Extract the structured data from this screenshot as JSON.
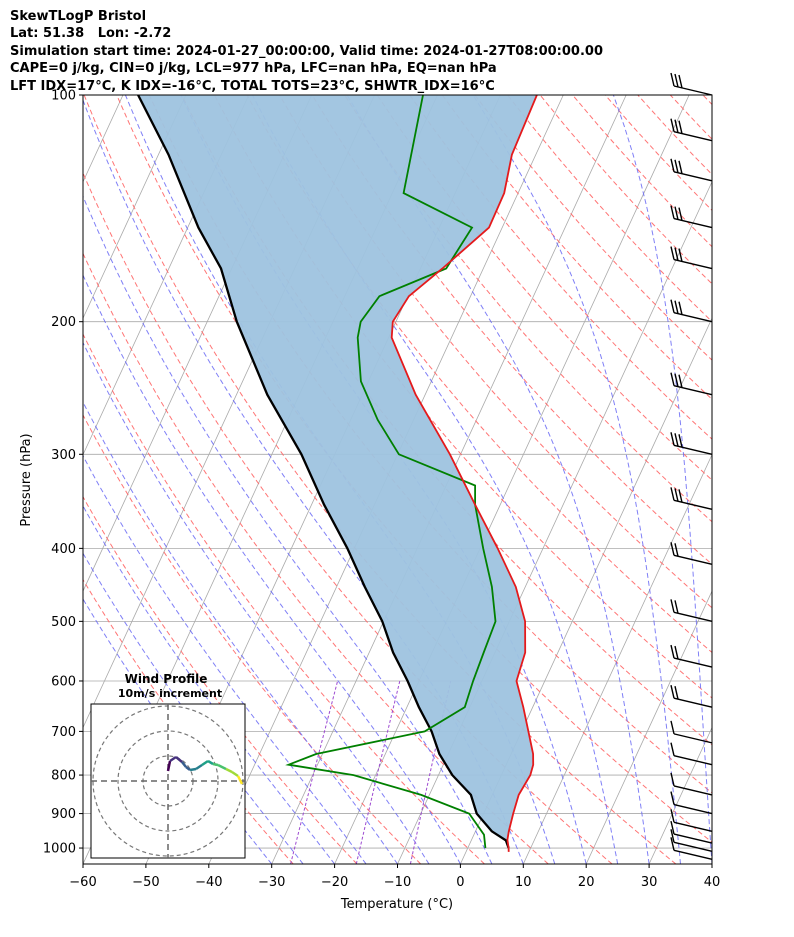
{
  "header": {
    "line1": "SkewTLogP Bristol",
    "line2": "Lat: 51.38   Lon: -2.72",
    "line3": "Simulation start time: 2024-01-27_00:00:00, Valid time: 2024-01-27T08:00:00.00",
    "line4": "CAPE=0 j/kg, CIN=0 j/kg, LCL=977 hPa, LFC=nan hPa, EQ=nan hPa",
    "line5": "LFT IDX=17°C, K IDX=-16°C, TOTAL TOTS=23°C, SHWTR_IDX=16°C"
  },
  "inset": {
    "title": "Wind Profile",
    "subtitle": "10m/s increment"
  },
  "chart_data": {
    "type": "line",
    "subtype": "skew-T log-p diagram",
    "xlabel": "Temperature (°C)",
    "ylabel": "Pressure (hPa)",
    "xlim": [
      -60,
      40
    ],
    "ylim": [
      1050,
      100
    ],
    "yscale": "log",
    "grid": true,
    "x_ticks": [
      -60,
      -50,
      -40,
      -30,
      -20,
      -10,
      0,
      10,
      20,
      30,
      40
    ],
    "y_ticks": [
      100,
      200,
      300,
      400,
      500,
      600,
      700,
      800,
      900,
      1000
    ],
    "colors": {
      "temperature": "#e41a1c",
      "dewpoint": "#008000",
      "parcel": "#000000",
      "shading": "#9ec3df",
      "dry_adiabat": "#ff6666",
      "moist_adiabat": "#6a6af5",
      "mixing_ratio": "#9d4ad1",
      "isotherm": "#aaaaaa"
    },
    "series": [
      {
        "key": "temperature",
        "pressure": [
          1012,
          1000,
          975,
          950,
          900,
          850,
          800,
          775,
          750,
          700,
          650,
          600,
          550,
          500,
          450,
          400,
          350,
          300,
          250,
          210,
          200,
          185,
          170,
          150,
          135,
          120,
          100
        ],
        "temp": [
          6.8,
          6.5,
          5.7,
          5.3,
          4.7,
          4.2,
          4.6,
          4.3,
          3.5,
          1.1,
          -1.5,
          -4.5,
          -5.2,
          -7.5,
          -11.5,
          -17.2,
          -24.0,
          -31.7,
          -41.5,
          -49.5,
          -50.5,
          -49.8,
          -46.5,
          -42.1,
          -42.2,
          -43.8,
          -44.2
        ]
      },
      {
        "key": "dewpoint",
        "pressure": [
          1000,
          960,
          900,
          850,
          800,
          775,
          750,
          700,
          650,
          600,
          550,
          500,
          450,
          400,
          350,
          330,
          300,
          270,
          240,
          210,
          200,
          185,
          170,
          150,
          135,
          100
        ],
        "dewpoint": [
          2.8,
          1.6,
          -2.3,
          -11.3,
          -23.5,
          -34.6,
          -31.0,
          -15.4,
          -10.8,
          -11.4,
          -11.8,
          -12.2,
          -15.3,
          -19.5,
          -24.0,
          -25.4,
          -39.8,
          -45.7,
          -51.2,
          -54.9,
          -55.6,
          -54.5,
          -45.9,
          -44.8,
          -58.2,
          -62.3
        ]
      },
      {
        "key": "parcel",
        "pressure": [
          1000,
          977,
          950,
          900,
          850,
          800,
          750,
          700,
          650,
          600,
          550,
          500,
          450,
          400,
          350,
          300,
          250,
          200,
          170,
          150,
          120,
          100
        ],
        "temp": [
          6.5,
          5.5,
          2.6,
          -1.1,
          -3.4,
          -7.8,
          -11.4,
          -14.3,
          -18.1,
          -21.8,
          -26.2,
          -30.2,
          -35.5,
          -41.1,
          -48.0,
          -55.3,
          -65.1,
          -75.3,
          -81.7,
          -88.3,
          -98.4,
          -107.6
        ]
      }
    ],
    "wind_barbs_pressure": [
      1035,
      1010,
      985,
      950,
      900,
      850,
      775,
      725,
      650,
      575,
      500,
      420,
      355,
      300,
      250,
      200,
      170,
      150,
      130,
      115,
      100
    ],
    "hodograph": {
      "title": "Wind Profile",
      "subtitle": "10m/s increment",
      "rings": [
        10,
        20,
        30
      ]
    }
  }
}
